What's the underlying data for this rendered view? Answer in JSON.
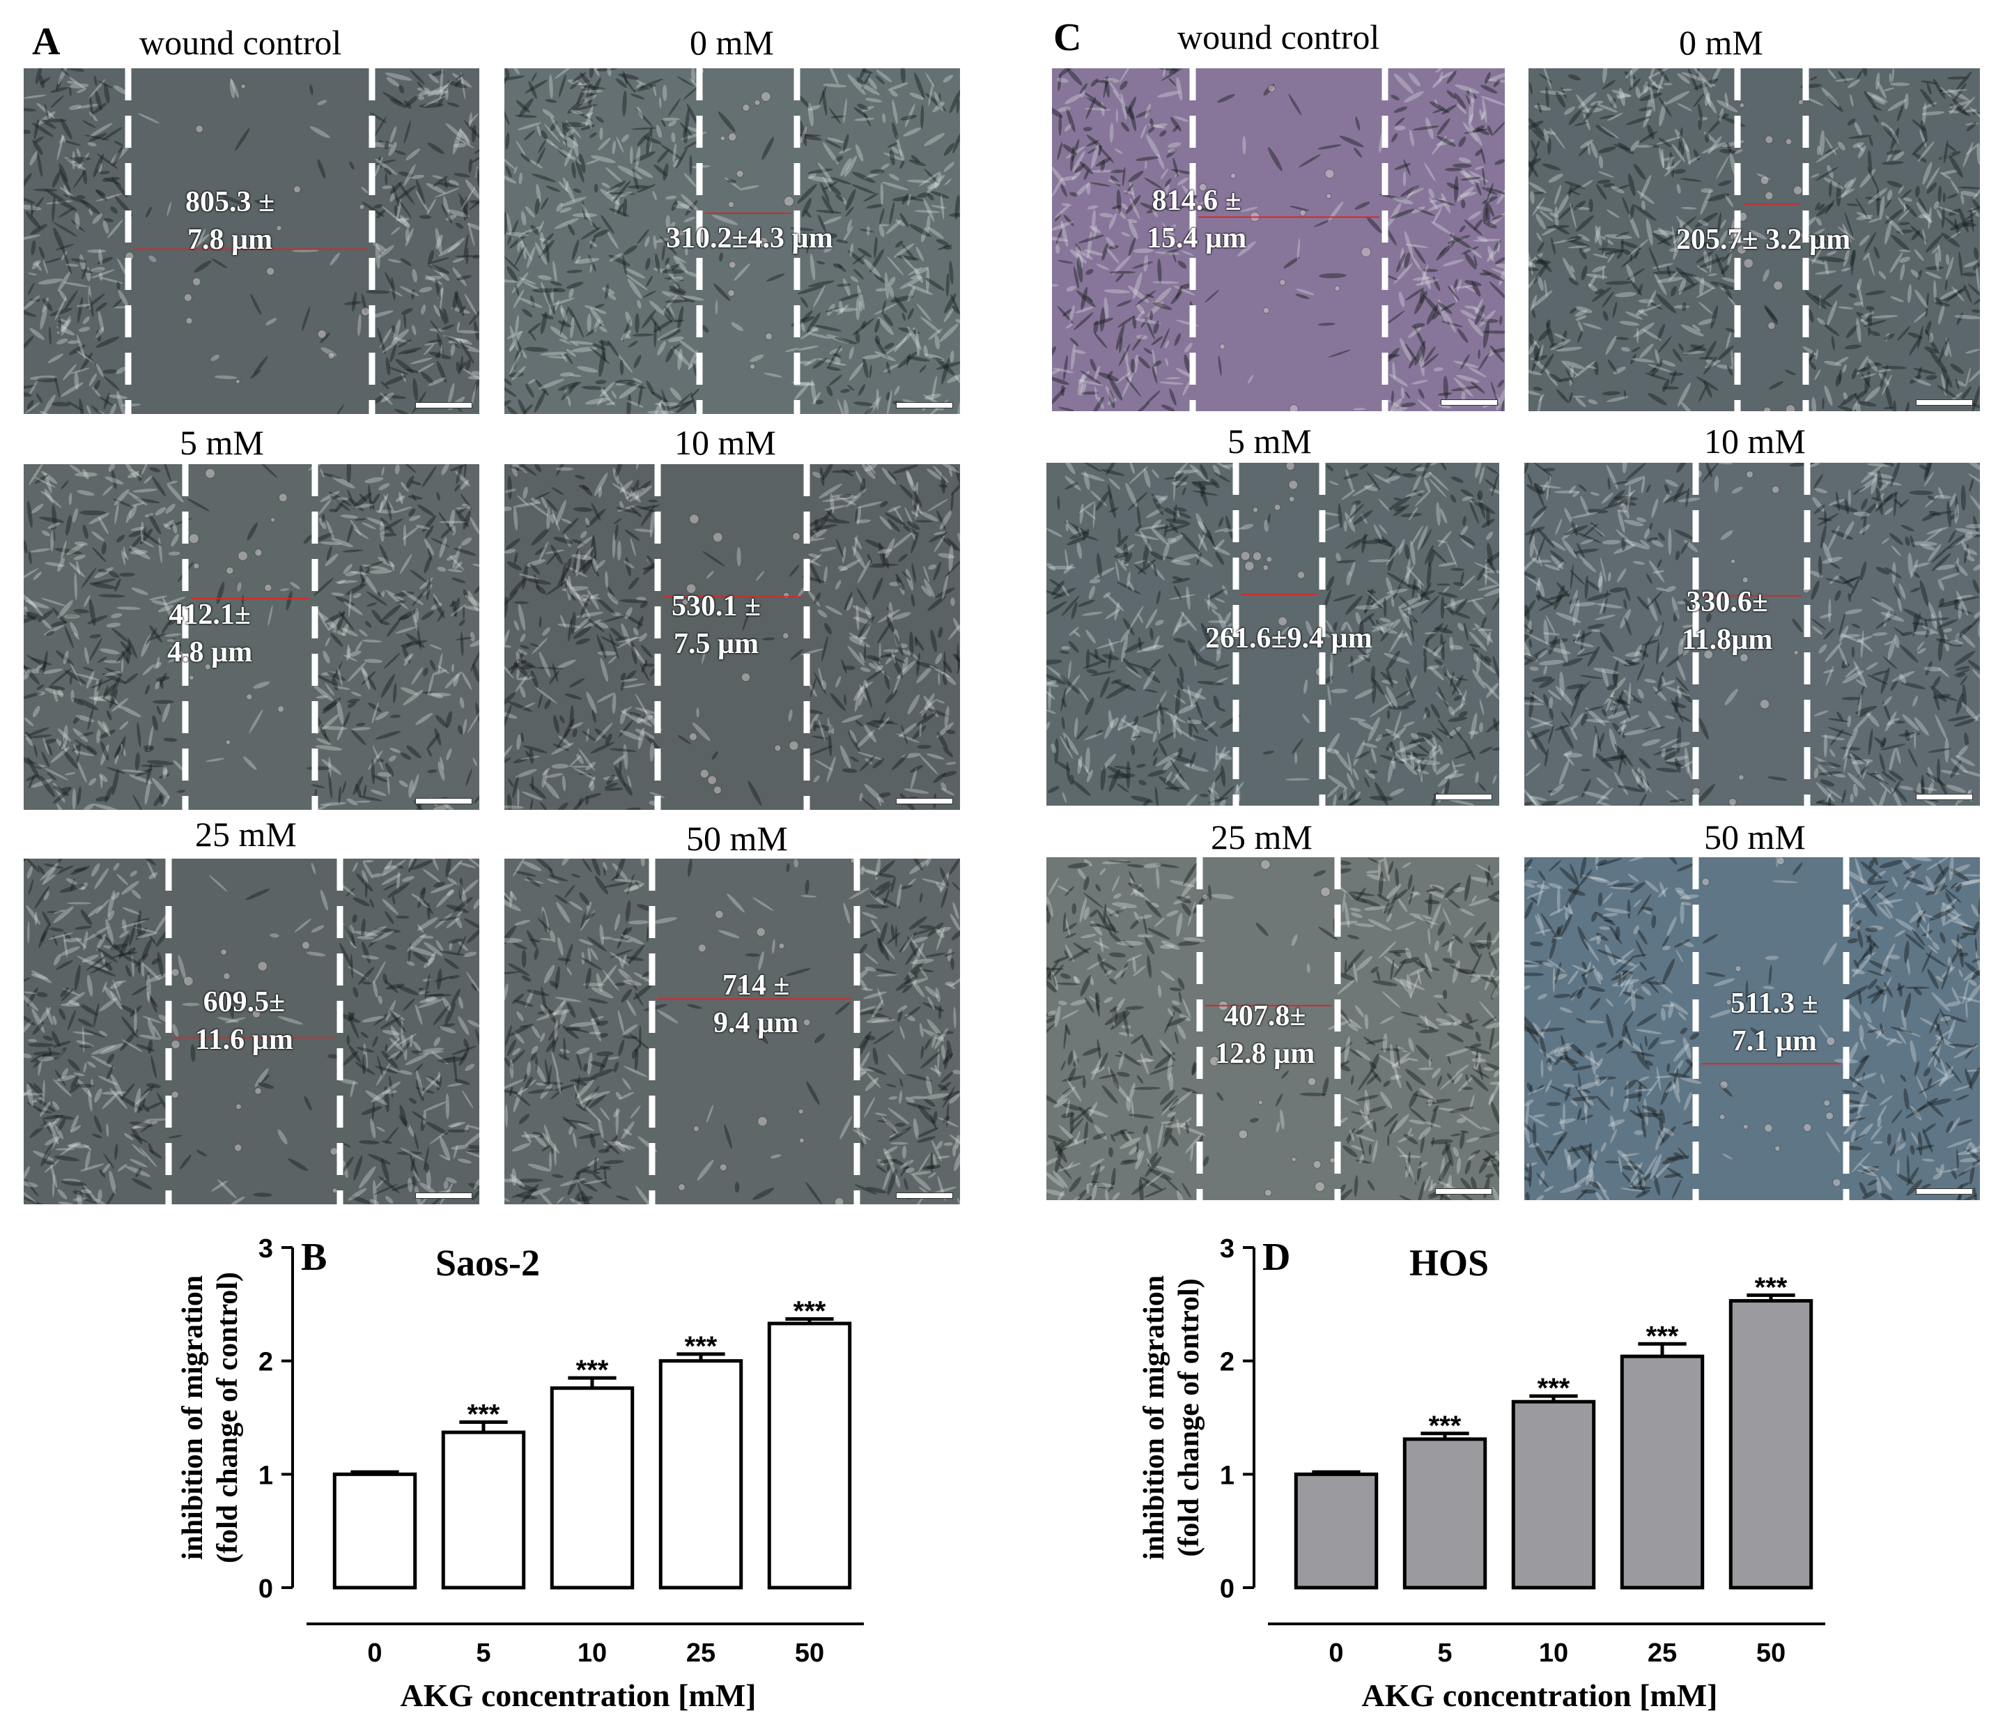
{
  "panels": {
    "A": {
      "letter": "A",
      "cell_line": "Saos-2",
      "images": [
        {
          "title": "wound control",
          "measure": [
            "805.3 ±",
            "7.8 µm"
          ]
        },
        {
          "title": "0 mM",
          "measure": [
            "310.2±4.3 µm"
          ]
        },
        {
          "title": "5 mM",
          "measure": [
            "412.1±",
            "4.8 µm"
          ]
        },
        {
          "title": "10 mM",
          "measure": [
            "530.1 ±",
            "7.5 µm"
          ]
        },
        {
          "title": "25 mM",
          "measure": [
            "609.5±",
            "11.6 µm"
          ]
        },
        {
          "title": "50 mM",
          "measure": [
            "714 ±",
            "9.4 µm"
          ]
        }
      ]
    },
    "C": {
      "letter": "C",
      "cell_line": "HOS",
      "images": [
        {
          "title": "wound control",
          "measure": [
            "814.6 ±",
            "15.4 µm"
          ]
        },
        {
          "title": "0 mM",
          "measure": [
            "205.7± 3.2 µm"
          ]
        },
        {
          "title": "5 mM",
          "measure": [
            "261.6±9.4 µm"
          ]
        },
        {
          "title": "10 mM",
          "measure": [
            "330.6±",
            "11.8µm"
          ]
        },
        {
          "title": "25 mM",
          "measure": [
            "407.8±",
            "12.8 µm"
          ]
        },
        {
          "title": "50 mM",
          "measure": [
            "511.3 ±",
            "7.1 µm"
          ]
        }
      ]
    },
    "B": {
      "letter": "B"
    },
    "D": {
      "letter": "D"
    }
  },
  "chart_data": [
    {
      "panel": "B",
      "type": "bar",
      "title": "Saos-2",
      "categories": [
        "0",
        "5",
        "10",
        "25",
        "50"
      ],
      "values": [
        1.0,
        1.37,
        1.76,
        2.0,
        2.33
      ],
      "errors": [
        0.02,
        0.09,
        0.09,
        0.06,
        0.04
      ],
      "significance": [
        "",
        "***",
        "***",
        "***",
        "***"
      ],
      "xlabel": "AKG concentration [mM]",
      "ylabel_line1": "inhibition of migration",
      "ylabel_line2": "(fold change of control)",
      "ylim": [
        0,
        3
      ],
      "yticks": [
        "0",
        "1",
        "2",
        "3"
      ],
      "bar_fill": "#ffffff",
      "bar_stroke": "#000000"
    },
    {
      "panel": "D",
      "type": "bar",
      "title": "HOS",
      "categories": [
        "0",
        "5",
        "10",
        "25",
        "50"
      ],
      "values": [
        1.0,
        1.31,
        1.64,
        2.04,
        2.53
      ],
      "errors": [
        0.02,
        0.05,
        0.05,
        0.11,
        0.05
      ],
      "significance": [
        "",
        "***",
        "***",
        "***",
        "***"
      ],
      "xlabel": "AKG concentration [mM]",
      "ylabel_line1": "inhibition of migration",
      "ylabel_line2": "(fold change of ontrol)",
      "ylim": [
        0,
        3
      ],
      "yticks": [
        "0",
        "1",
        "2",
        "3"
      ],
      "bar_fill": "#9b9a9f",
      "bar_stroke": "#000000"
    }
  ]
}
